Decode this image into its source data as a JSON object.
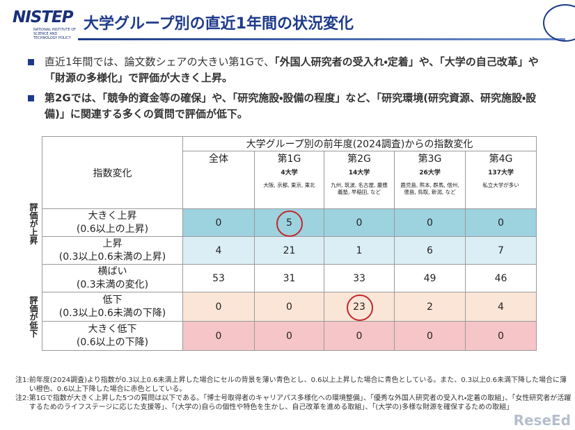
{
  "header": {
    "logo": "NISTEP",
    "logo_sub": "NATIONAL INSTITUTE OF SCIENCE AND TECHNOLOGY POLICY",
    "title": "大学グループ別の直近1年間の状況変化"
  },
  "bullets": [
    [
      "直近1年間では、論文数シェアの大きい第1Gで、",
      "「外国人研究者の受入れ・定着」や、「大学の自己改革」や「財源の多様化」で評価が大きく上昇。"
    ],
    [
      "第2Gでは、「競争的資金等の確保」や、「研究施設・設備の程度」など、「研究環境(研究資源、研究施設・設備)」に関連する多くの質問で評価が低下。"
    ]
  ],
  "table": {
    "corner": "指数変化",
    "group_header": "大学グループ別の前年度(2024調査)からの指数変化",
    "columns": [
      {
        "name": "全体"
      },
      {
        "name": "第1G",
        "count": "4大学",
        "members": "大阪, 京都, 東京, 東北"
      },
      {
        "name": "第2G",
        "count": "14大学",
        "members": "九州, 筑波, 名古屋, 慶應義塾, 早稲田, など"
      },
      {
        "name": "第3G",
        "count": "26大学",
        "members": "鹿児島, 熊本, 群馬, 信州, 徳島, 鳥取, 新潟, など"
      },
      {
        "name": "第4G",
        "count": "137大学",
        "members": "私立大学が多い"
      }
    ],
    "side_labels": [
      "評価が上昇",
      "評価が低下"
    ],
    "rows": [
      {
        "label": "大きく上昇",
        "range": "(0.6以上の上昇)",
        "values": [
          0,
          5,
          0,
          0,
          0
        ]
      },
      {
        "label": "上昇",
        "range": "(0.3以上0.6未満の上昇)",
        "values": [
          4,
          21,
          1,
          6,
          7
        ]
      },
      {
        "label": "横ばい",
        "range": "(0.3未満の変化)",
        "values": [
          53,
          31,
          33,
          49,
          46
        ]
      },
      {
        "label": "低下",
        "range": "(0.3以上0.6未満の下降)",
        "values": [
          0,
          0,
          23,
          2,
          4
        ]
      },
      {
        "label": "大きく低下",
        "range": "(0.6以上の下降)",
        "values": [
          0,
          0,
          0,
          0,
          0
        ]
      }
    ]
  },
  "notes": [
    {
      "label": "注1:",
      "text": "前年度(2024調査)より指数が0.3以上0.6未満上昇した場合にセルの背景を薄い青色とし、0.6以上上昇した場合に青色としている。また、0.3以上0.6未満下降した場合に薄い橙色、0.6以上下降した場合に赤色としている。"
    },
    {
      "label": "注2:",
      "text": "第1Gで指数が大きく上昇した5つの質問は以下である。「博士号取得者のキャリアパス多様化への環境整備」、「優秀な外国人研究者の受入れ・定着の取組」、「女性研究者が活躍するためのライフステージに応じた支援等」、「(大学の)自らの個性や特色を生かし、自己改革を進める取組」、「(大学の)多様な財源を確保するための取組」"
    }
  ],
  "watermark": "ReseEd"
}
